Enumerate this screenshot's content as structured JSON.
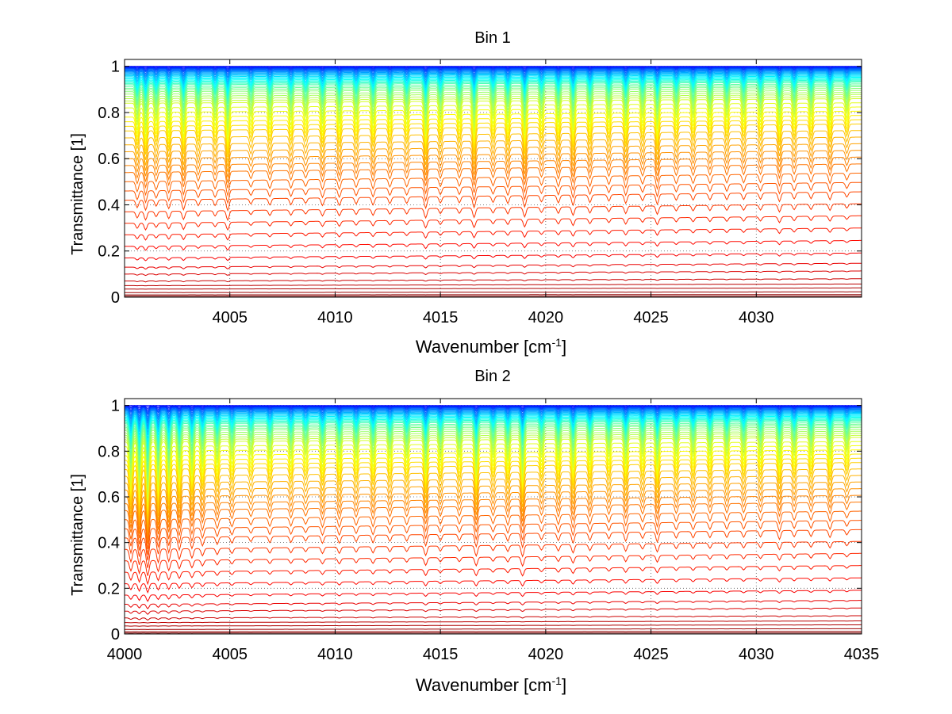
{
  "chart_data": [
    {
      "type": "line",
      "title": "Bin 1",
      "xlabel": "Wavenumber [cm",
      "xlabel_sup": "-1",
      "xlabel_end": "]",
      "ylabel": "Transmittance [1]",
      "xlim": [
        4000,
        4035
      ],
      "ylim": [
        0,
        1.03
      ],
      "xticks": [
        4005,
        4010,
        4015,
        4020,
        4025,
        4030
      ],
      "xtick_labels": [
        "4005",
        "4010",
        "4015",
        "4020",
        "4025",
        "4030"
      ],
      "yticks": [
        0,
        0.2,
        0.4,
        0.6,
        0.8,
        1
      ],
      "ytick_labels": [
        "0",
        "0.2",
        "0.4",
        "0.6",
        "0.8",
        "1"
      ],
      "grid": true,
      "colormap": "jet",
      "series_count": 60,
      "line_baselines": [
        1.0,
        0.998,
        0.996,
        0.994,
        0.992,
        0.99,
        0.988,
        0.985,
        0.982,
        0.979,
        0.976,
        0.972,
        0.968,
        0.964,
        0.96,
        0.955,
        0.95,
        0.945,
        0.94,
        0.935,
        0.93,
        0.925,
        0.92,
        0.912,
        0.905,
        0.898,
        0.89,
        0.88,
        0.87,
        0.86,
        0.85,
        0.84,
        0.82,
        0.8,
        0.78,
        0.76,
        0.74,
        0.72,
        0.69,
        0.66,
        0.63,
        0.6,
        0.57,
        0.54,
        0.5,
        0.46,
        0.42,
        0.37,
        0.32,
        0.27,
        0.22,
        0.17,
        0.13,
        0.1,
        0.07,
        0.05,
        0.035,
        0.02,
        0.01,
        0.004
      ],
      "absorption_lines": [
        4000.6,
        4001.0,
        4001.5,
        4002.1,
        4002.8,
        4003.5,
        4004.3,
        4004.9,
        4006.0,
        4006.9,
        4007.9,
        4008.6,
        4009.4,
        4010.2,
        4011.0,
        4011.8,
        4012.6,
        4013.4,
        4014.3,
        4015.0,
        4015.9,
        4016.6,
        4017.5,
        4018.2,
        4019.0,
        4019.8,
        4020.6,
        4021.3,
        4022.1,
        4023.0,
        4023.8,
        4024.6,
        4025.3,
        4026.2,
        4027.0,
        4027.8,
        4028.6,
        4029.4,
        4030.2,
        4031.1,
        4031.8,
        4032.6,
        4033.5,
        4034.3
      ],
      "absorption_depths": [
        0.06,
        0.08,
        0.05,
        0.07,
        0.08,
        0.05,
        0.05,
        0.09,
        0.04,
        0.05,
        0.05,
        0.04,
        0.06,
        0.06,
        0.05,
        0.06,
        0.05,
        0.05,
        0.09,
        0.05,
        0.05,
        0.09,
        0.05,
        0.06,
        0.09,
        0.05,
        0.06,
        0.08,
        0.06,
        0.05,
        0.07,
        0.05,
        0.08,
        0.05,
        0.05,
        0.05,
        0.05,
        0.05,
        0.05,
        0.07,
        0.05,
        0.05,
        0.06,
        0.04
      ]
    },
    {
      "type": "line",
      "title": "Bin 2",
      "xlabel": "Wavenumber [cm",
      "xlabel_sup": "-1",
      "xlabel_end": "]",
      "ylabel": "Transmittance [1]",
      "xlim": [
        4000,
        4035
      ],
      "ylim": [
        0,
        1.03
      ],
      "xticks": [
        4000,
        4005,
        4010,
        4015,
        4020,
        4025,
        4030,
        4035
      ],
      "xtick_labels": [
        "4000",
        "4005",
        "4010",
        "4015",
        "4020",
        "4025",
        "4030",
        "4035"
      ],
      "yticks": [
        0,
        0.2,
        0.4,
        0.6,
        0.8,
        1
      ],
      "ytick_labels": [
        "0",
        "0.2",
        "0.4",
        "0.6",
        "0.8",
        "1"
      ],
      "grid": true,
      "colormap": "jet",
      "series_count": 60,
      "line_baselines": [
        1.0,
        0.998,
        0.996,
        0.994,
        0.992,
        0.99,
        0.988,
        0.985,
        0.982,
        0.979,
        0.976,
        0.972,
        0.968,
        0.964,
        0.96,
        0.955,
        0.95,
        0.945,
        0.94,
        0.935,
        0.93,
        0.925,
        0.92,
        0.912,
        0.905,
        0.898,
        0.89,
        0.88,
        0.87,
        0.86,
        0.85,
        0.84,
        0.82,
        0.8,
        0.78,
        0.76,
        0.74,
        0.72,
        0.69,
        0.66,
        0.63,
        0.6,
        0.57,
        0.54,
        0.5,
        0.46,
        0.42,
        0.37,
        0.32,
        0.27,
        0.22,
        0.17,
        0.13,
        0.1,
        0.07,
        0.05,
        0.035,
        0.02,
        0.01,
        0.004
      ],
      "absorption_lines": [
        4000.3,
        4000.7,
        4001.1,
        4001.6,
        4002.1,
        4002.6,
        4003.2,
        4003.7,
        4004.4,
        4005.1,
        4006.0,
        4006.9,
        4007.9,
        4008.6,
        4009.4,
        4010.2,
        4011.0,
        4011.8,
        4012.6,
        4013.4,
        4014.3,
        4015.0,
        4015.9,
        4016.7,
        4017.5,
        4018.2,
        4018.9,
        4019.8,
        4020.6,
        4021.3,
        4022.1,
        4023.0,
        4023.8,
        4024.6,
        4025.3,
        4026.2,
        4027.0,
        4027.8,
        4028.6,
        4029.4,
        4030.2,
        4031.1,
        4031.8,
        4032.6,
        4033.5,
        4034.3
      ],
      "absorption_depths": [
        0.12,
        0.15,
        0.18,
        0.13,
        0.12,
        0.1,
        0.09,
        0.07,
        0.06,
        0.05,
        0.04,
        0.05,
        0.05,
        0.04,
        0.06,
        0.06,
        0.05,
        0.06,
        0.05,
        0.05,
        0.09,
        0.05,
        0.05,
        0.1,
        0.05,
        0.06,
        0.11,
        0.05,
        0.06,
        0.08,
        0.06,
        0.05,
        0.07,
        0.05,
        0.08,
        0.05,
        0.05,
        0.05,
        0.05,
        0.05,
        0.05,
        0.07,
        0.05,
        0.05,
        0.06,
        0.04
      ]
    }
  ]
}
